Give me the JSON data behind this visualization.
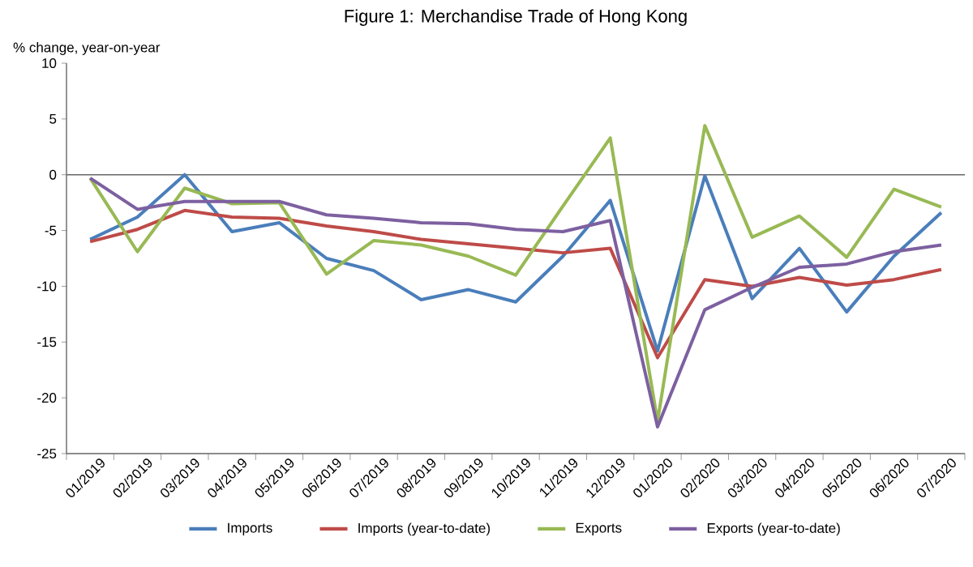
{
  "chart_data": {
    "type": "line",
    "title": "Figure 1: Merchandise Trade of Hong Kong",
    "ylabel": "% change, year-on-year",
    "categories": [
      "01/2019",
      "02/2019",
      "03/2019",
      "04/2019",
      "05/2019",
      "06/2019",
      "07/2019",
      "08/2019",
      "09/2019",
      "10/2019",
      "11/2019",
      "12/2019",
      "01/2020",
      "02/2020",
      "03/2020",
      "04/2020",
      "05/2020",
      "06/2020",
      "07/2020"
    ],
    "series": [
      {
        "name": "Imports",
        "color": "#4a7ebb",
        "values": [
          -5.8,
          -3.8,
          0.0,
          -5.1,
          -4.3,
          -7.5,
          -8.6,
          -11.2,
          -10.3,
          -11.4,
          -7.3,
          -2.3,
          -15.8,
          -0.1,
          -11.1,
          -6.6,
          -12.3,
          -7.3,
          -3.4
        ]
      },
      {
        "name": "Imports (year-to-date)",
        "color": "#be4b48",
        "values": [
          -6.0,
          -4.9,
          -3.2,
          -3.8,
          -3.9,
          -4.6,
          -5.1,
          -5.8,
          -6.2,
          -6.6,
          -7.0,
          -6.6,
          -16.4,
          -9.4,
          -10.0,
          -9.2,
          -9.9,
          -9.4,
          -8.5
        ]
      },
      {
        "name": "Exports",
        "color": "#98b954",
        "values": [
          -0.3,
          -6.9,
          -1.2,
          -2.6,
          -2.5,
          -8.9,
          -5.9,
          -6.3,
          -7.3,
          -9.0,
          -2.8,
          3.3,
          -22.1,
          4.4,
          -5.6,
          -3.7,
          -7.4,
          -1.3,
          -2.9
        ]
      },
      {
        "name": "Exports (year-to-date)",
        "color": "#7d60a0",
        "values": [
          -0.3,
          -3.1,
          -2.4,
          -2.4,
          -2.4,
          -3.6,
          -3.9,
          -4.3,
          -4.4,
          -4.9,
          -5.1,
          -4.1,
          -22.6,
          -12.1,
          -10.1,
          -8.3,
          -8.0,
          -6.9,
          -6.3
        ]
      }
    ],
    "ylim": [
      -25,
      10
    ],
    "yticks": [
      -25,
      -20,
      -15,
      -10,
      -5,
      0,
      5,
      10
    ],
    "legend": "bottom",
    "marker": "none",
    "line_style": "solid"
  }
}
